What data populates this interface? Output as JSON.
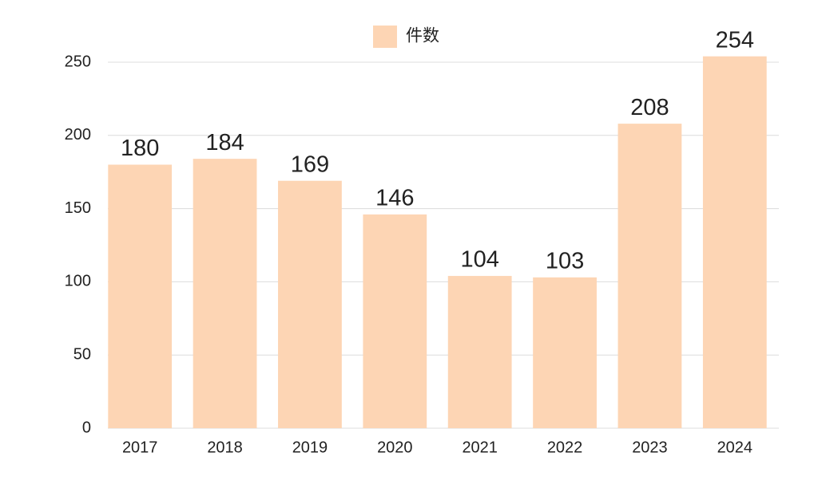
{
  "chart_data": {
    "type": "bar",
    "categories": [
      "2017",
      "2018",
      "2019",
      "2020",
      "2021",
      "2022",
      "2023",
      "2024"
    ],
    "series": [
      {
        "name": "件数",
        "color": "#fdd5b4",
        "values": [
          180,
          184,
          169,
          146,
          104,
          103,
          208,
          254
        ]
      }
    ],
    "ylim": [
      0,
      270
    ],
    "yticks": [
      0,
      50,
      100,
      150,
      200,
      250
    ],
    "grid": true,
    "legend": "top"
  }
}
